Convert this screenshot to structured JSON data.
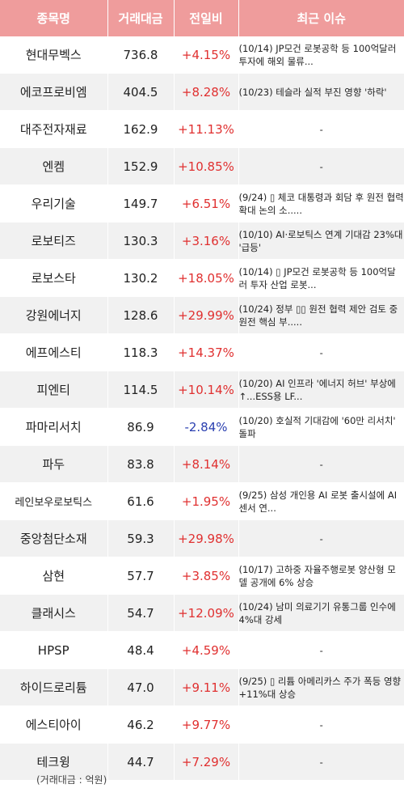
{
  "header": {
    "name": "종목명",
    "amount": "거래대금",
    "change": "전일비",
    "issue": "최근 이슈"
  },
  "rows": [
    {
      "name": "현대무벡스",
      "amount": "736.8",
      "change": "+4.15%",
      "direction": "up",
      "issue": "(10/14) JP모건 로봇공학 등 100억달러 투자에 해외 물류..."
    },
    {
      "name": "에코프로비엠",
      "amount": "404.5",
      "change": "+8.28%",
      "direction": "up",
      "issue": "(10/23) 테슬라 실적 부진 영향 '하락'"
    },
    {
      "name": "대주전자재료",
      "amount": "162.9",
      "change": "+11.13%",
      "direction": "up",
      "issue": "-"
    },
    {
      "name": "엔켐",
      "amount": "152.9",
      "change": "+10.85%",
      "direction": "up",
      "issue": "-"
    },
    {
      "name": "우리기술",
      "amount": "149.7",
      "change": "+6.51%",
      "direction": "up",
      "issue": "(9/24) ▯ 체코 대통령과 회담 후 원전 협력 확대 논의 소....."
    },
    {
      "name": "로보티즈",
      "amount": "130.3",
      "change": "+3.16%",
      "direction": "up",
      "issue": "(10/10) AI·로보틱스 연계 기대감 23%대 '급등'"
    },
    {
      "name": "로보스타",
      "amount": "130.2",
      "change": "+18.05%",
      "direction": "up",
      "issue": "(10/14) ▯ JP모건 로봇공학 등 100억달러 투자 산업 로봇..."
    },
    {
      "name": "강원에너지",
      "amount": "128.6",
      "change": "+29.99%",
      "direction": "up",
      "issue": "(10/24) 정부 ▯▯ 원전 협력 제안 검토 중 원전 핵심 부....."
    },
    {
      "name": "에프에스티",
      "amount": "118.3",
      "change": "+14.37%",
      "direction": "up",
      "issue": "-"
    },
    {
      "name": "피엔티",
      "amount": "114.5",
      "change": "+10.14%",
      "direction": "up",
      "issue": "(10/20) AI 인프라 '에너지 허브' 부상에 ↑...ESS용 LF..."
    },
    {
      "name": "파마리서치",
      "amount": "86.9",
      "change": "-2.84%",
      "direction": "down",
      "issue": "(10/20) 호실적 기대감에 '60만 리서치' 돌파"
    },
    {
      "name": "파두",
      "amount": "83.8",
      "change": "+8.14%",
      "direction": "up",
      "issue": "-"
    },
    {
      "name": "레인보우로보틱스",
      "amount": "61.6",
      "change": "+1.95%",
      "direction": "up",
      "issue": "(9/25) 삼성 개인용 AI 로봇 출시설에 AI센서 연..."
    },
    {
      "name": "중앙첨단소재",
      "amount": "59.3",
      "change": "+29.98%",
      "direction": "up",
      "issue": "-"
    },
    {
      "name": "삼현",
      "amount": "57.7",
      "change": "+3.85%",
      "direction": "up",
      "issue": "(10/17) 고하중 자율주행로봇 양산형 모델 공개에 6% 상승"
    },
    {
      "name": "클래시스",
      "amount": "54.7",
      "change": "+12.09%",
      "direction": "up",
      "issue": "(10/24) 남미 의료기기 유통그룹 인수에 4%대 강세"
    },
    {
      "name": "HPSP",
      "amount": "48.4",
      "change": "+4.59%",
      "direction": "up",
      "issue": "-"
    },
    {
      "name": "하이드로리튬",
      "amount": "47.0",
      "change": "+9.11%",
      "direction": "up",
      "issue": "(9/25) ▯ 리튬 아메리카스 주가 폭등 영향 +11%대 상승"
    },
    {
      "name": "에스티아이",
      "amount": "46.2",
      "change": "+9.77%",
      "direction": "up",
      "issue": "-"
    },
    {
      "name": "테크윙",
      "amount": "44.7",
      "change": "+7.29%",
      "direction": "up",
      "issue": "-"
    }
  ],
  "footnote": "(거래대금 : 억원)",
  "colors": {
    "header_bg": "#ef9c9c",
    "up": "#e03030",
    "down": "#2a3fb0",
    "stripe": "#f1f1f1"
  }
}
